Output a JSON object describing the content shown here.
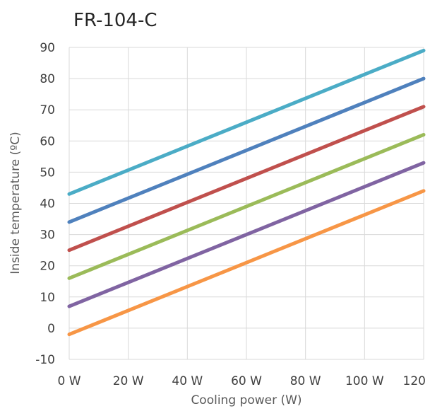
{
  "chart_data": {
    "type": "line",
    "title": "FR-104-C",
    "xlabel": "Cooling power (W)",
    "ylabel": "Inside temperature (ºC)",
    "xlim": [
      0,
      120
    ],
    "ylim": [
      -10,
      90
    ],
    "x_ticks": [
      0,
      20,
      40,
      60,
      80,
      100,
      120
    ],
    "x_tick_labels": [
      "0 W",
      "20 W",
      "40 W",
      "60 W",
      "80 W",
      "100 W",
      "120"
    ],
    "y_ticks": [
      -10,
      0,
      10,
      20,
      30,
      40,
      50,
      60,
      70,
      80,
      90
    ],
    "y_tick_labels": [
      "-10",
      "0",
      "10",
      "20",
      "30",
      "40",
      "50",
      "60",
      "70",
      "80",
      "90"
    ],
    "grid": true,
    "series": [
      {
        "color": "#f79646",
        "x": [
          0,
          120
        ],
        "y": [
          -2,
          44
        ]
      },
      {
        "color": "#8064a2",
        "x": [
          0,
          120
        ],
        "y": [
          7,
          53
        ]
      },
      {
        "color": "#9bbb59",
        "x": [
          0,
          120
        ],
        "y": [
          16,
          62
        ]
      },
      {
        "color": "#c0504d",
        "x": [
          0,
          120
        ],
        "y": [
          25,
          71
        ]
      },
      {
        "color": "#4f81bd",
        "x": [
          0,
          120
        ],
        "y": [
          34,
          80
        ]
      },
      {
        "color": "#4bacc6",
        "x": [
          0,
          120
        ],
        "y": [
          43,
          89
        ]
      }
    ]
  }
}
